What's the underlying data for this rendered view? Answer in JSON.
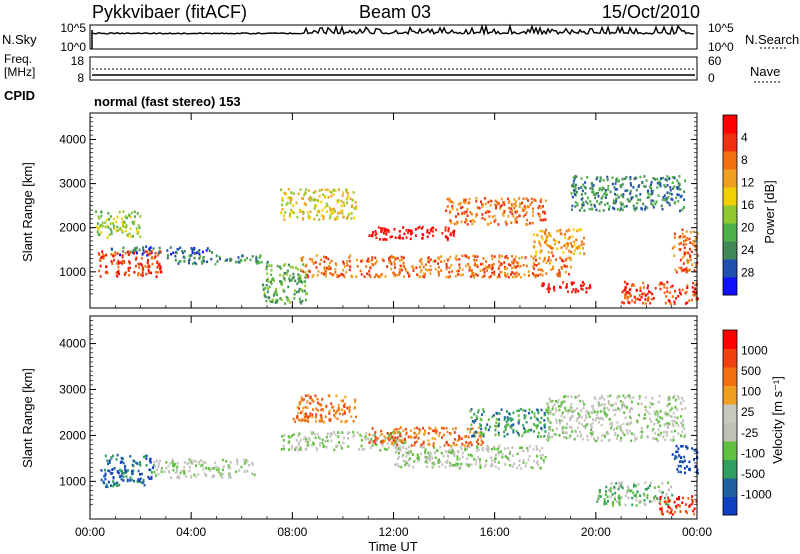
{
  "header": {
    "station": "Pykkvibaer (fitACF)",
    "beam": "Beam 03",
    "date": "15/Oct/2010"
  },
  "top_panels": {
    "nsky_label": "N.Sky",
    "nsky_ticks": [
      "10^5",
      "10^0"
    ],
    "nsearch_label": "N.Search",
    "nsearch_ticks": [
      "10^5",
      "10^0"
    ],
    "freq_label_line1": "Freq.",
    "freq_label_line2": "[MHz]",
    "freq_ticks": [
      "18",
      "8"
    ],
    "nave_label": "Nave",
    "nave_ticks": [
      "60",
      "0"
    ],
    "cpid_label": "CPID",
    "cpid_text": "normal (fast stereo) 153"
  },
  "chart_data": [
    {
      "type": "heatmap",
      "name": "power-panel",
      "ylabel": "Slant Range [km]",
      "y_ticks": [
        1000,
        2000,
        3000,
        4000
      ],
      "ylim": [
        180,
        4600
      ],
      "x_ticks": [
        "00:00",
        "04:00",
        "08:00",
        "12:00",
        "16:00",
        "20:00",
        "00:00"
      ],
      "xlim_hours": [
        0,
        24
      ],
      "colorbar": {
        "label": "Power [dB]",
        "ticks": [
          "4",
          "8",
          "12",
          "16",
          "20",
          "24",
          "28"
        ],
        "colors": [
          "#1010ff",
          "#2050b0",
          "#408858",
          "#50b048",
          "#90c830",
          "#f0d000",
          "#f0a020",
          "#f07010",
          "#f03010",
          "#ff0000"
        ]
      },
      "echo_regions": [
        {
          "t0": 0.8,
          "t1": 4.8,
          "r0": 1400,
          "r1": 1600,
          "level": 1
        },
        {
          "t0": 0.3,
          "t1": 2.8,
          "r0": 900,
          "r1": 1500,
          "level": 8
        },
        {
          "t0": 3.0,
          "t1": 7.0,
          "r0": 1200,
          "r1": 1400,
          "level": 2
        },
        {
          "t0": 0.2,
          "t1": 2.0,
          "r0": 1800,
          "r1": 2400,
          "level": 4
        },
        {
          "t0": 6.8,
          "t1": 8.6,
          "r0": 300,
          "r1": 1200,
          "level": 3
        },
        {
          "t0": 7.5,
          "t1": 10.5,
          "r0": 2200,
          "r1": 2900,
          "level": 5
        },
        {
          "t0": 8.3,
          "t1": 19.0,
          "r0": 900,
          "r1": 1400,
          "level": 7
        },
        {
          "t0": 11.0,
          "t1": 14.5,
          "r0": 1750,
          "r1": 2050,
          "level": 9
        },
        {
          "t0": 14.0,
          "t1": 18.0,
          "r0": 2100,
          "r1": 2700,
          "level": 7
        },
        {
          "t0": 17.5,
          "t1": 19.5,
          "r0": 1400,
          "r1": 2000,
          "level": 6
        },
        {
          "t0": 19.0,
          "t1": 23.5,
          "r0": 2400,
          "r1": 3200,
          "level": 2
        },
        {
          "t0": 17.8,
          "t1": 19.8,
          "r0": 550,
          "r1": 800,
          "level": 9
        },
        {
          "t0": 21.0,
          "t1": 24.0,
          "r0": 300,
          "r1": 800,
          "level": 8
        },
        {
          "t0": 23.0,
          "t1": 24.0,
          "r0": 1000,
          "r1": 2000,
          "level": 7
        }
      ]
    },
    {
      "type": "heatmap",
      "name": "velocity-panel",
      "ylabel": "Slant Range [km]",
      "y_ticks": [
        1000,
        2000,
        3000,
        4000
      ],
      "ylim": [
        180,
        4600
      ],
      "x_ticks": [
        "00:00",
        "04:00",
        "08:00",
        "12:00",
        "16:00",
        "20:00",
        "00:00"
      ],
      "xlim_hours": [
        0,
        24
      ],
      "xlabel": "Time UT",
      "colorbar": {
        "label": "Velocity [m s⁻¹]",
        "ticks": [
          "1000",
          "500",
          "100",
          "25",
          "-25",
          "-100",
          "-500",
          "-1000"
        ],
        "colors": [
          "#1040c0",
          "#2060a0",
          "#30a060",
          "#60c040",
          "#c0c0b8",
          "#c8c8c0",
          "#f0a020",
          "#f07010",
          "#f04010",
          "#ff0000"
        ]
      },
      "echo_regions": [
        {
          "t0": 7.5,
          "t1": 12.5,
          "r0": 1700,
          "r1": 2100,
          "level": 4
        },
        {
          "t0": 12.0,
          "t1": 18.0,
          "r0": 1300,
          "r1": 1800,
          "level": 4
        },
        {
          "t0": 8.0,
          "t1": 10.5,
          "r0": 2300,
          "r1": 2900,
          "level": 7
        },
        {
          "t0": 11.0,
          "t1": 15.5,
          "r0": 1800,
          "r1": 2200,
          "level": 7
        },
        {
          "t0": 15.0,
          "t1": 18.0,
          "r0": 2000,
          "r1": 2600,
          "level": 2
        },
        {
          "t0": 18.0,
          "t1": 23.5,
          "r0": 1900,
          "r1": 2900,
          "level": 4
        },
        {
          "t0": 0.4,
          "t1": 2.5,
          "r0": 900,
          "r1": 1600,
          "level": 1
        },
        {
          "t0": 2.5,
          "t1": 6.5,
          "r0": 1100,
          "r1": 1500,
          "level": 4
        },
        {
          "t0": 20.0,
          "t1": 23.0,
          "r0": 500,
          "r1": 1000,
          "level": 3
        },
        {
          "t0": 23.0,
          "t1": 24.0,
          "r0": 1200,
          "r1": 1800,
          "level": 0
        },
        {
          "t0": 22.5,
          "t1": 24.0,
          "r0": 300,
          "r1": 700,
          "level": 8
        }
      ]
    }
  ]
}
